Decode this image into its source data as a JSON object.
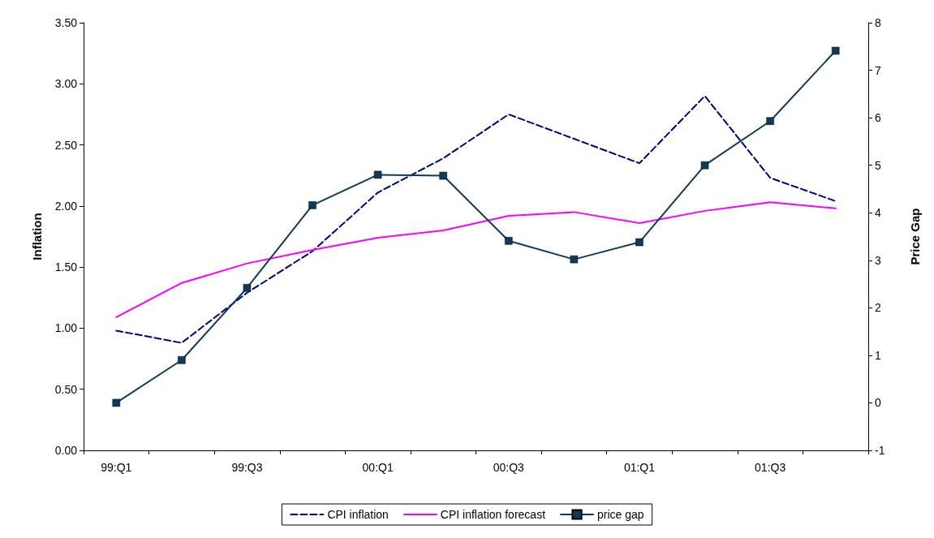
{
  "chart_data": {
    "type": "line",
    "ylabel": "Inflation",
    "y2label": "Price Gap",
    "categories": [
      "99:Q1",
      null,
      "99:Q3",
      null,
      "00:Q1",
      null,
      "00:Q3",
      null,
      "01:Q1",
      null,
      "01:Q3",
      null
    ],
    "series": [
      {
        "name": "CPI inflation",
        "color": "#000080",
        "line_style": "dashed",
        "marker": "none",
        "values": [
          0.98,
          0.88,
          1.29,
          1.63,
          2.11,
          2.39,
          2.75,
          2.55,
          2.35,
          2.9,
          2.23,
          2.04
        ]
      },
      {
        "name": "CPI inflation forecast",
        "color": "#ff00ff",
        "line_style": "solid",
        "marker": "none",
        "values": [
          1.09,
          1.37,
          1.53,
          1.64,
          1.74,
          1.8,
          1.92,
          1.95,
          1.86,
          1.96,
          2.03,
          1.98
        ]
      },
      {
        "name": "price gap",
        "color": "#0f3a5a",
        "line_style": "solid",
        "marker": "square",
        "axis": "y2",
        "values": [
          0,
          0.9,
          2.42,
          4.16,
          4.8,
          4.78,
          3.41,
          3.02,
          3.38,
          5,
          5.93,
          7.41
        ]
      }
    ],
    "ylim": [
      0,
      3.5
    ],
    "yticks": [
      {
        "value": 0,
        "label": "0.00"
      },
      {
        "value": 0.5,
        "label": "0.50"
      },
      {
        "value": 1,
        "label": "1.00"
      },
      {
        "value": 1.5,
        "label": "1.50"
      },
      {
        "value": 2,
        "label": "2.00"
      },
      {
        "value": 2.5,
        "label": "2.50"
      },
      {
        "value": 3,
        "label": "3.00"
      },
      {
        "value": 3.5,
        "label": "3.50"
      }
    ],
    "y2lim": [
      -1,
      8
    ],
    "y2ticks": [
      -1,
      0,
      1,
      2,
      3,
      4,
      5,
      6,
      7,
      8
    ],
    "grid": false,
    "legend": "bottom"
  }
}
